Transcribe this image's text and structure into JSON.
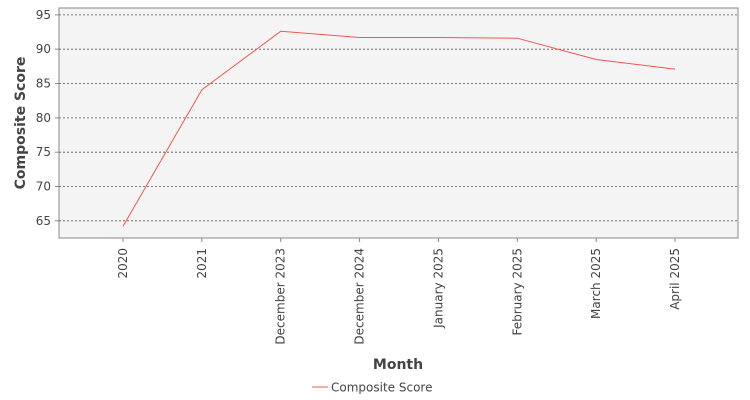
{
  "chart_data": {
    "type": "line",
    "title": "",
    "xlabel": "Month",
    "ylabel": "Composite Score",
    "categories": [
      "2020",
      "2021",
      "December 2023",
      "December 2024",
      "January 2025",
      "February 2025",
      "March 2025",
      "April 2025"
    ],
    "series": [
      {
        "name": "Composite Score",
        "color": "#f0584f",
        "values": [
          64.2,
          84.1,
          92.6,
          91.7,
          91.7,
          91.6,
          88.5,
          87.1
        ]
      }
    ],
    "ylim": [
      62.5,
      96
    ],
    "yticks": [
      65,
      70,
      75,
      80,
      85,
      90,
      95
    ],
    "grid": true,
    "legend_position": "bottom"
  }
}
